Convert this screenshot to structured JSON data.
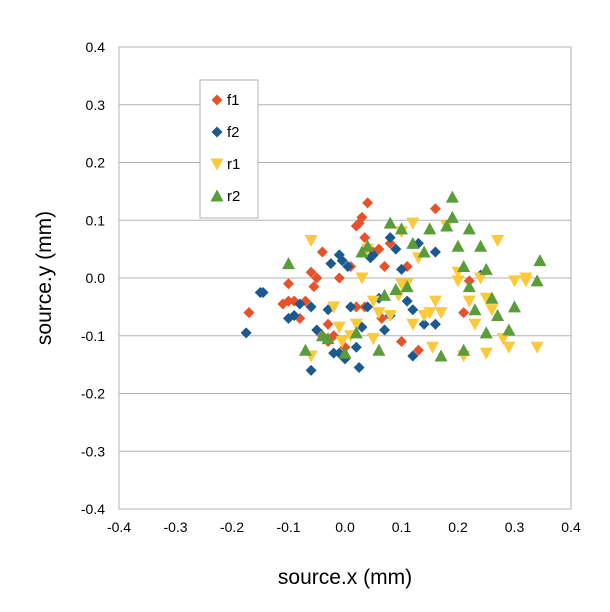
{
  "chart_data": {
    "type": "scatter",
    "xlabel": "source.x (mm)",
    "ylabel": "source.y  (mm)",
    "xlim": [
      -0.4,
      0.4
    ],
    "ylim": [
      -0.4,
      0.4
    ],
    "xticks": [
      "-0.4",
      "-0.3",
      "-0.2",
      "-0.1",
      "0.0",
      "0.1",
      "0.2",
      "0.3",
      "0.4"
    ],
    "yticks": [
      "0.4",
      "0.3",
      "0.2",
      "0.1",
      "0.0",
      "-0.1",
      "-0.2",
      "-0.3",
      "-0.4"
    ],
    "grid": "horizontal",
    "legend_position": "top-left inside",
    "series": [
      {
        "name": "f1",
        "marker": "diamond",
        "color": "#e8522a",
        "points": [
          [
            -0.17,
            -0.06
          ],
          [
            -0.11,
            -0.045
          ],
          [
            -0.1,
            -0.01
          ],
          [
            -0.1,
            -0.04
          ],
          [
            -0.09,
            -0.04
          ],
          [
            -0.08,
            -0.07
          ],
          [
            -0.07,
            -0.04
          ],
          [
            -0.06,
            0.01
          ],
          [
            -0.055,
            -0.015
          ],
          [
            -0.05,
            0.0
          ],
          [
            -0.04,
            0.045
          ],
          [
            -0.04,
            -0.1
          ],
          [
            -0.03,
            -0.11
          ],
          [
            -0.03,
            -0.08
          ],
          [
            -0.02,
            -0.1
          ],
          [
            -0.01,
            0.0
          ],
          [
            0.0,
            -0.12
          ],
          [
            0.01,
            0.02
          ],
          [
            0.02,
            0.09
          ],
          [
            0.025,
            0.095
          ],
          [
            0.03,
            0.105
          ],
          [
            0.035,
            0.07
          ],
          [
            0.035,
            -0.05
          ],
          [
            0.04,
            0.13
          ],
          [
            0.05,
            0.045
          ],
          [
            0.06,
            0.05
          ],
          [
            0.065,
            -0.07
          ],
          [
            0.07,
            0.02
          ],
          [
            0.08,
            0.06
          ],
          [
            0.1,
            -0.11
          ],
          [
            0.11,
            0.02
          ],
          [
            0.13,
            -0.125
          ],
          [
            0.16,
            0.12
          ],
          [
            0.21,
            -0.06
          ],
          [
            0.22,
            -0.005
          ],
          [
            0.02,
            -0.05
          ]
        ]
      },
      {
        "name": "f2",
        "marker": "diamond",
        "color": "#1a5a8e",
        "points": [
          [
            -0.175,
            -0.095
          ],
          [
            -0.15,
            -0.025
          ],
          [
            -0.145,
            -0.025
          ],
          [
            -0.1,
            -0.07
          ],
          [
            -0.09,
            -0.065
          ],
          [
            -0.08,
            -0.045
          ],
          [
            -0.06,
            -0.16
          ],
          [
            -0.06,
            -0.05
          ],
          [
            -0.05,
            -0.09
          ],
          [
            -0.03,
            -0.055
          ],
          [
            -0.025,
            0.025
          ],
          [
            -0.02,
            -0.13
          ],
          [
            -0.01,
            -0.13
          ],
          [
            -0.01,
            0.04
          ],
          [
            -0.005,
            0.03
          ],
          [
            0.0,
            -0.14
          ],
          [
            0.005,
            0.02
          ],
          [
            0.01,
            -0.05
          ],
          [
            0.02,
            -0.12
          ],
          [
            0.025,
            -0.155
          ],
          [
            0.03,
            -0.085
          ],
          [
            0.04,
            -0.05
          ],
          [
            0.045,
            0.035
          ],
          [
            0.05,
            0.04
          ],
          [
            0.06,
            -0.035
          ],
          [
            0.07,
            -0.09
          ],
          [
            0.08,
            -0.065
          ],
          [
            0.09,
            0.05
          ],
          [
            0.1,
            0.015
          ],
          [
            0.11,
            -0.04
          ],
          [
            0.12,
            -0.055
          ],
          [
            0.12,
            -0.135
          ],
          [
            0.13,
            0.06
          ],
          [
            0.14,
            -0.08
          ],
          [
            0.16,
            -0.08
          ],
          [
            0.16,
            0.045
          ],
          [
            0.24,
            0.005
          ],
          [
            0.08,
            0.07
          ]
        ]
      },
      {
        "name": "r1",
        "marker": "triangle-down",
        "color": "#fcc93a",
        "points": [
          [
            -0.06,
            -0.135
          ],
          [
            -0.06,
            0.065
          ],
          [
            -0.02,
            -0.05
          ],
          [
            -0.01,
            -0.085
          ],
          [
            -0.005,
            -0.11
          ],
          [
            0.01,
            -0.1
          ],
          [
            0.02,
            -0.08
          ],
          [
            0.03,
            0.0
          ],
          [
            0.04,
            0.05
          ],
          [
            0.05,
            -0.04
          ],
          [
            0.06,
            -0.06
          ],
          [
            0.08,
            -0.065
          ],
          [
            0.1,
            0.08
          ],
          [
            0.1,
            -0.01
          ],
          [
            0.11,
            -0.01
          ],
          [
            0.12,
            0.095
          ],
          [
            0.12,
            -0.08
          ],
          [
            0.13,
            0.035
          ],
          [
            0.14,
            -0.065
          ],
          [
            0.15,
            -0.06
          ],
          [
            0.155,
            -0.12
          ],
          [
            0.16,
            -0.04
          ],
          [
            0.17,
            -0.06
          ],
          [
            0.18,
            0.09
          ],
          [
            0.2,
            0.01
          ],
          [
            0.2,
            -0.005
          ],
          [
            0.21,
            -0.135
          ],
          [
            0.22,
            -0.04
          ],
          [
            0.23,
            -0.08
          ],
          [
            0.24,
            0.0
          ],
          [
            0.25,
            -0.035
          ],
          [
            0.25,
            -0.13
          ],
          [
            0.27,
            0.065
          ],
          [
            0.28,
            -0.105
          ],
          [
            0.29,
            -0.12
          ],
          [
            0.3,
            -0.005
          ],
          [
            0.32,
            -0.005
          ],
          [
            0.32,
            0.0
          ],
          [
            0.34,
            -0.12
          ],
          [
            0.095,
            -0.03
          ],
          [
            0.05,
            -0.105
          ],
          [
            0.26,
            -0.055
          ]
        ]
      },
      {
        "name": "r2",
        "marker": "triangle-up",
        "color": "#5a9b3a",
        "points": [
          [
            -0.1,
            0.025
          ],
          [
            -0.07,
            -0.125
          ],
          [
            -0.04,
            -0.1
          ],
          [
            -0.03,
            -0.105
          ],
          [
            0.0,
            -0.13
          ],
          [
            0.02,
            -0.095
          ],
          [
            0.03,
            0.045
          ],
          [
            0.04,
            0.055
          ],
          [
            0.06,
            -0.125
          ],
          [
            0.08,
            0.095
          ],
          [
            0.1,
            0.085
          ],
          [
            0.11,
            -0.015
          ],
          [
            0.12,
            0.06
          ],
          [
            0.14,
            0.045
          ],
          [
            0.15,
            0.085
          ],
          [
            0.17,
            -0.135
          ],
          [
            0.18,
            0.09
          ],
          [
            0.19,
            0.105
          ],
          [
            0.19,
            0.14
          ],
          [
            0.2,
            0.055
          ],
          [
            0.21,
            0.02
          ],
          [
            0.22,
            0.085
          ],
          [
            0.22,
            -0.015
          ],
          [
            0.23,
            -0.055
          ],
          [
            0.24,
            0.055
          ],
          [
            0.25,
            -0.095
          ],
          [
            0.25,
            0.015
          ],
          [
            0.26,
            -0.035
          ],
          [
            0.27,
            -0.065
          ],
          [
            0.29,
            -0.09
          ],
          [
            0.3,
            -0.05
          ],
          [
            0.34,
            -0.005
          ],
          [
            0.345,
            0.03
          ],
          [
            0.21,
            -0.125
          ],
          [
            0.09,
            -0.02
          ],
          [
            0.07,
            -0.03
          ]
        ]
      }
    ]
  }
}
